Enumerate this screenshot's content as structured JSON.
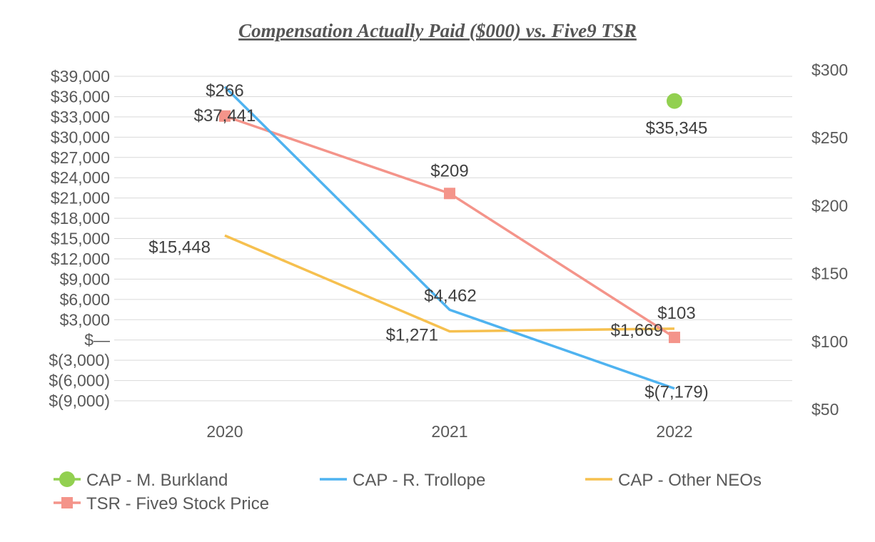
{
  "chart_data": {
    "type": "line",
    "title": "Compensation Actually Paid ($000) vs. Five9 TSR",
    "categories": [
      "2020",
      "2021",
      "2022"
    ],
    "y_left": {
      "min": -9000,
      "max": 39000,
      "step": 3000,
      "tick_labels": [
        "$(9,000)",
        "$(6,000)",
        "$(3,000)",
        "$—",
        "$3,000",
        "$6,000",
        "$9,000",
        "$12,000",
        "$15,000",
        "$18,000",
        "$21,000",
        "$24,000",
        "$27,000",
        "$30,000",
        "$33,000",
        "$36,000",
        "$39,000"
      ]
    },
    "y_right": {
      "min": 50,
      "max": 300,
      "step": 50,
      "tick_labels": [
        "$50",
        "$100",
        "$150",
        "$200",
        "$250",
        "$300"
      ]
    },
    "grid": true,
    "legend_position": "bottom",
    "series": [
      {
        "name": "CAP - M. Burkland",
        "axis": "left",
        "color": "#92d050",
        "marker": "circle",
        "line": false,
        "values": [
          null,
          null,
          35345
        ],
        "labels": [
          "",
          "",
          "$35,345"
        ]
      },
      {
        "name": "CAP - R. Trollope",
        "axis": "left",
        "color": "#4fb3f0",
        "marker": "none",
        "line": true,
        "values": [
          37441,
          4462,
          -7179
        ],
        "labels": [
          "$37,441",
          "$4,462",
          "$(7,179)"
        ]
      },
      {
        "name": "CAP - Other NEOs",
        "axis": "left",
        "color": "#f6c04f",
        "marker": "none",
        "line": true,
        "values": [
          15448,
          1271,
          1669
        ],
        "labels": [
          "$15,448",
          "$1,271",
          "$1,669"
        ]
      },
      {
        "name": "TSR - Five9 Stock Price",
        "axis": "right",
        "color": "#f4948a",
        "marker": "square",
        "line": true,
        "values": [
          266,
          209,
          103
        ],
        "labels": [
          "$266",
          "$209",
          "$103"
        ]
      }
    ]
  }
}
